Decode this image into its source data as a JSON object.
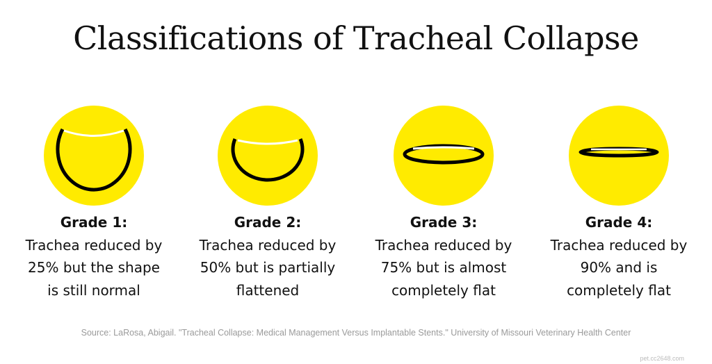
{
  "title": "Classifications of Tracheal Collapse",
  "grades": [
    {
      "heading": "Grade 1:",
      "lines": [
        "Trachea reduced by",
        "25% but the shape",
        "is still normal"
      ]
    },
    {
      "heading": "Grade 2:",
      "lines": [
        "Trachea reduced by",
        "50% but is partially",
        "flattened"
      ]
    },
    {
      "heading": "Grade 3:",
      "lines": [
        "Trachea reduced by",
        "75% but is almost",
        "completely flat"
      ]
    },
    {
      "heading": "Grade 4:",
      "lines": [
        "Trachea reduced by",
        "90% and is",
        "completely flat"
      ]
    }
  ],
  "source": "Source: LaRosa, Abigail. \"Tracheal Collapse: Medical Management Versus Implantable Stents.\" University of Missouri Veterinary Health Center",
  "watermark": "pet.cc2648.com"
}
